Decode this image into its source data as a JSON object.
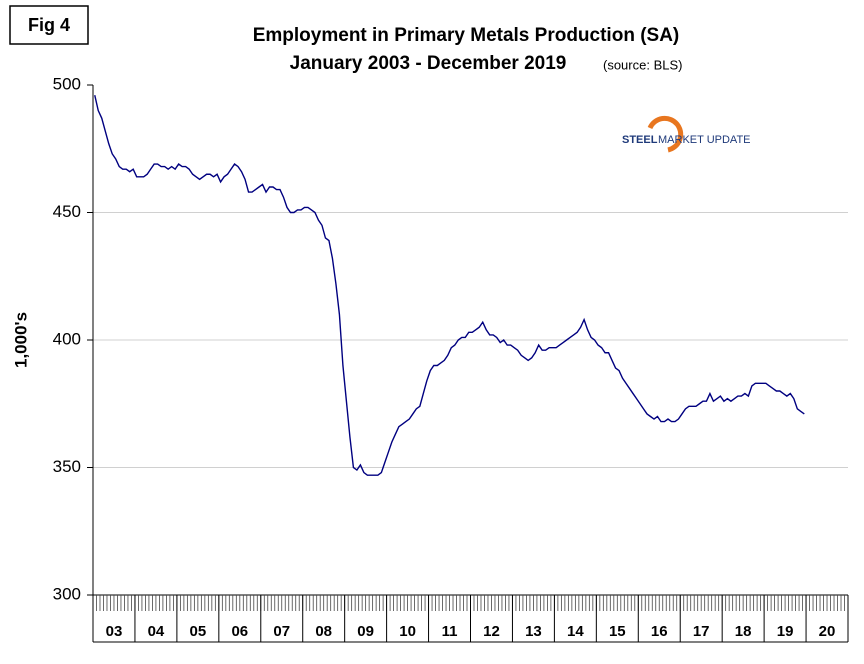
{
  "chart_data": {
    "type": "line",
    "figure_label": "Fig 4",
    "title": "Employment in Primary Metals Production (SA)",
    "subtitle": "January 2003 - December 2019",
    "source": "(source: BLS)",
    "logo_text": [
      "STEEL",
      "MARKET UPDATE"
    ],
    "y_label": "1,000's",
    "categories": [
      "03",
      null,
      null,
      null,
      null,
      null,
      null,
      null,
      null,
      null,
      null,
      null,
      "04",
      null,
      null,
      null,
      null,
      null,
      null,
      null,
      null,
      null,
      null,
      null,
      "05",
      null,
      null,
      null,
      null,
      null,
      null,
      null,
      null,
      null,
      null,
      null,
      "06",
      null,
      null,
      null,
      null,
      null,
      null,
      null,
      null,
      null,
      null,
      null,
      "07",
      null,
      null,
      null,
      null,
      null,
      null,
      null,
      null,
      null,
      null,
      null,
      "08",
      null,
      null,
      null,
      null,
      null,
      null,
      null,
      null,
      null,
      null,
      null,
      "09",
      null,
      null,
      null,
      null,
      null,
      null,
      null,
      null,
      null,
      null,
      null,
      "10",
      null,
      null,
      null,
      null,
      null,
      null,
      null,
      null,
      null,
      null,
      null,
      "11",
      null,
      null,
      null,
      null,
      null,
      null,
      null,
      null,
      null,
      null,
      null,
      "12",
      null,
      null,
      null,
      null,
      null,
      null,
      null,
      null,
      null,
      null,
      null,
      "13",
      null,
      null,
      null,
      null,
      null,
      null,
      null,
      null,
      null,
      null,
      null,
      "14",
      null,
      null,
      null,
      null,
      null,
      null,
      null,
      null,
      null,
      null,
      null,
      "15",
      null,
      null,
      null,
      null,
      null,
      null,
      null,
      null,
      null,
      null,
      null,
      "16",
      null,
      null,
      null,
      null,
      null,
      null,
      null,
      null,
      null,
      null,
      null,
      "17",
      null,
      null,
      null,
      null,
      null,
      null,
      null,
      null,
      null,
      null,
      null,
      "18",
      null,
      null,
      null,
      null,
      null,
      null,
      null,
      null,
      null,
      null,
      null,
      "19",
      null,
      null,
      null,
      null,
      null,
      null,
      null,
      null,
      null,
      null,
      null,
      "20",
      null,
      null,
      null,
      null,
      null,
      null,
      null,
      null,
      null,
      null,
      null
    ],
    "series": [
      {
        "name": null,
        "color": "#000080",
        "values": [
          496,
          490,
          487,
          482,
          477,
          473,
          471,
          468,
          467,
          467,
          466,
          467,
          464,
          464,
          464,
          465,
          467,
          469,
          469,
          468,
          468,
          467,
          468,
          467,
          469,
          468,
          468,
          467,
          465,
          464,
          463,
          464,
          465,
          465,
          464,
          465,
          462,
          464,
          465,
          467,
          469,
          468,
          466,
          463,
          458,
          458,
          459,
          460,
          461,
          458,
          460,
          460,
          459,
          459,
          456,
          452,
          450,
          450,
          451,
          451,
          452,
          452,
          451,
          450,
          447,
          445,
          440,
          439,
          432,
          422,
          410,
          390,
          376,
          362,
          350,
          349,
          351,
          348,
          347,
          347,
          347,
          347,
          348,
          352,
          356,
          360,
          363,
          366,
          367,
          368,
          369,
          371,
          373,
          374,
          379,
          384,
          388,
          390,
          390,
          391,
          392,
          394,
          397,
          398,
          400,
          401,
          401,
          403,
          403,
          404,
          405,
          407,
          404,
          402,
          402,
          401,
          399,
          400,
          398,
          398,
          397,
          396,
          394,
          393,
          392,
          393,
          395,
          398,
          396,
          396,
          397,
          397,
          397,
          398,
          399,
          400,
          401,
          402,
          403,
          405,
          408,
          404,
          401,
          400,
          398,
          397,
          395,
          395,
          392,
          389,
          388,
          385,
          383,
          381,
          379,
          377,
          375,
          373,
          371,
          370,
          369,
          370,
          368,
          368,
          369,
          368,
          368,
          369,
          371,
          373,
          374,
          374,
          374,
          375,
          376,
          376,
          379,
          376,
          377,
          378,
          376,
          377,
          376,
          377,
          378,
          378,
          379,
          378,
          382,
          383,
          383,
          383,
          383,
          382,
          381,
          380,
          380,
          379,
          378,
          379,
          377,
          373,
          372,
          371,
          null,
          null,
          null,
          null,
          null,
          null,
          null,
          null,
          null,
          null,
          null,
          null
        ]
      }
    ],
    "ylim": [
      300,
      500
    ],
    "yticks": [
      300,
      350,
      400,
      450,
      500
    ],
    "grid": true
  }
}
